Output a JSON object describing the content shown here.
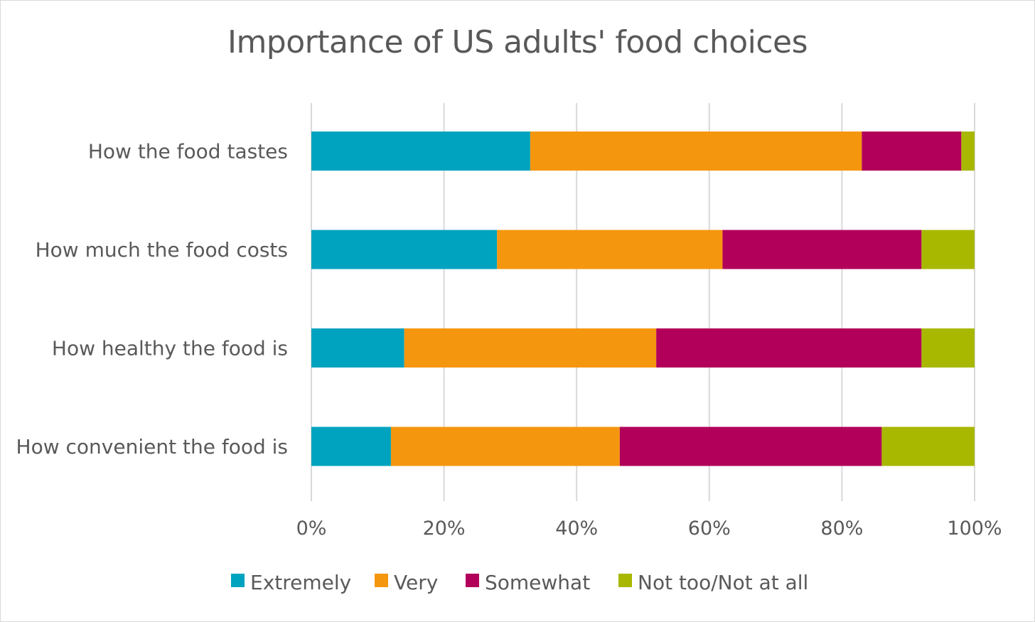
{
  "chart_data": {
    "type": "bar",
    "orientation": "horizontal",
    "stacked": "percent",
    "title": "Importance of US adults' food choices",
    "categories": [
      "How the food tastes",
      "How much the food costs",
      "How healthy the food is",
      "How convenient the food is"
    ],
    "series": [
      {
        "name": "Extremely",
        "color": "#00a3bf",
        "values": [
          33,
          28,
          14,
          12
        ]
      },
      {
        "name": "Very",
        "color": "#f5960f",
        "values": [
          50,
          34,
          38,
          34.5
        ]
      },
      {
        "name": "Somewhat",
        "color": "#b2005a",
        "values": [
          15,
          30,
          40,
          39.5
        ]
      },
      {
        "name": "Not too/Not at all",
        "color": "#a8b800",
        "values": [
          2,
          8,
          8,
          14
        ]
      }
    ],
    "xlim": [
      0,
      100
    ],
    "x_ticks": [
      "0%",
      "20%",
      "40%",
      "60%",
      "80%",
      "100%"
    ],
    "grid": "vertical",
    "legend_position": "bottom"
  }
}
